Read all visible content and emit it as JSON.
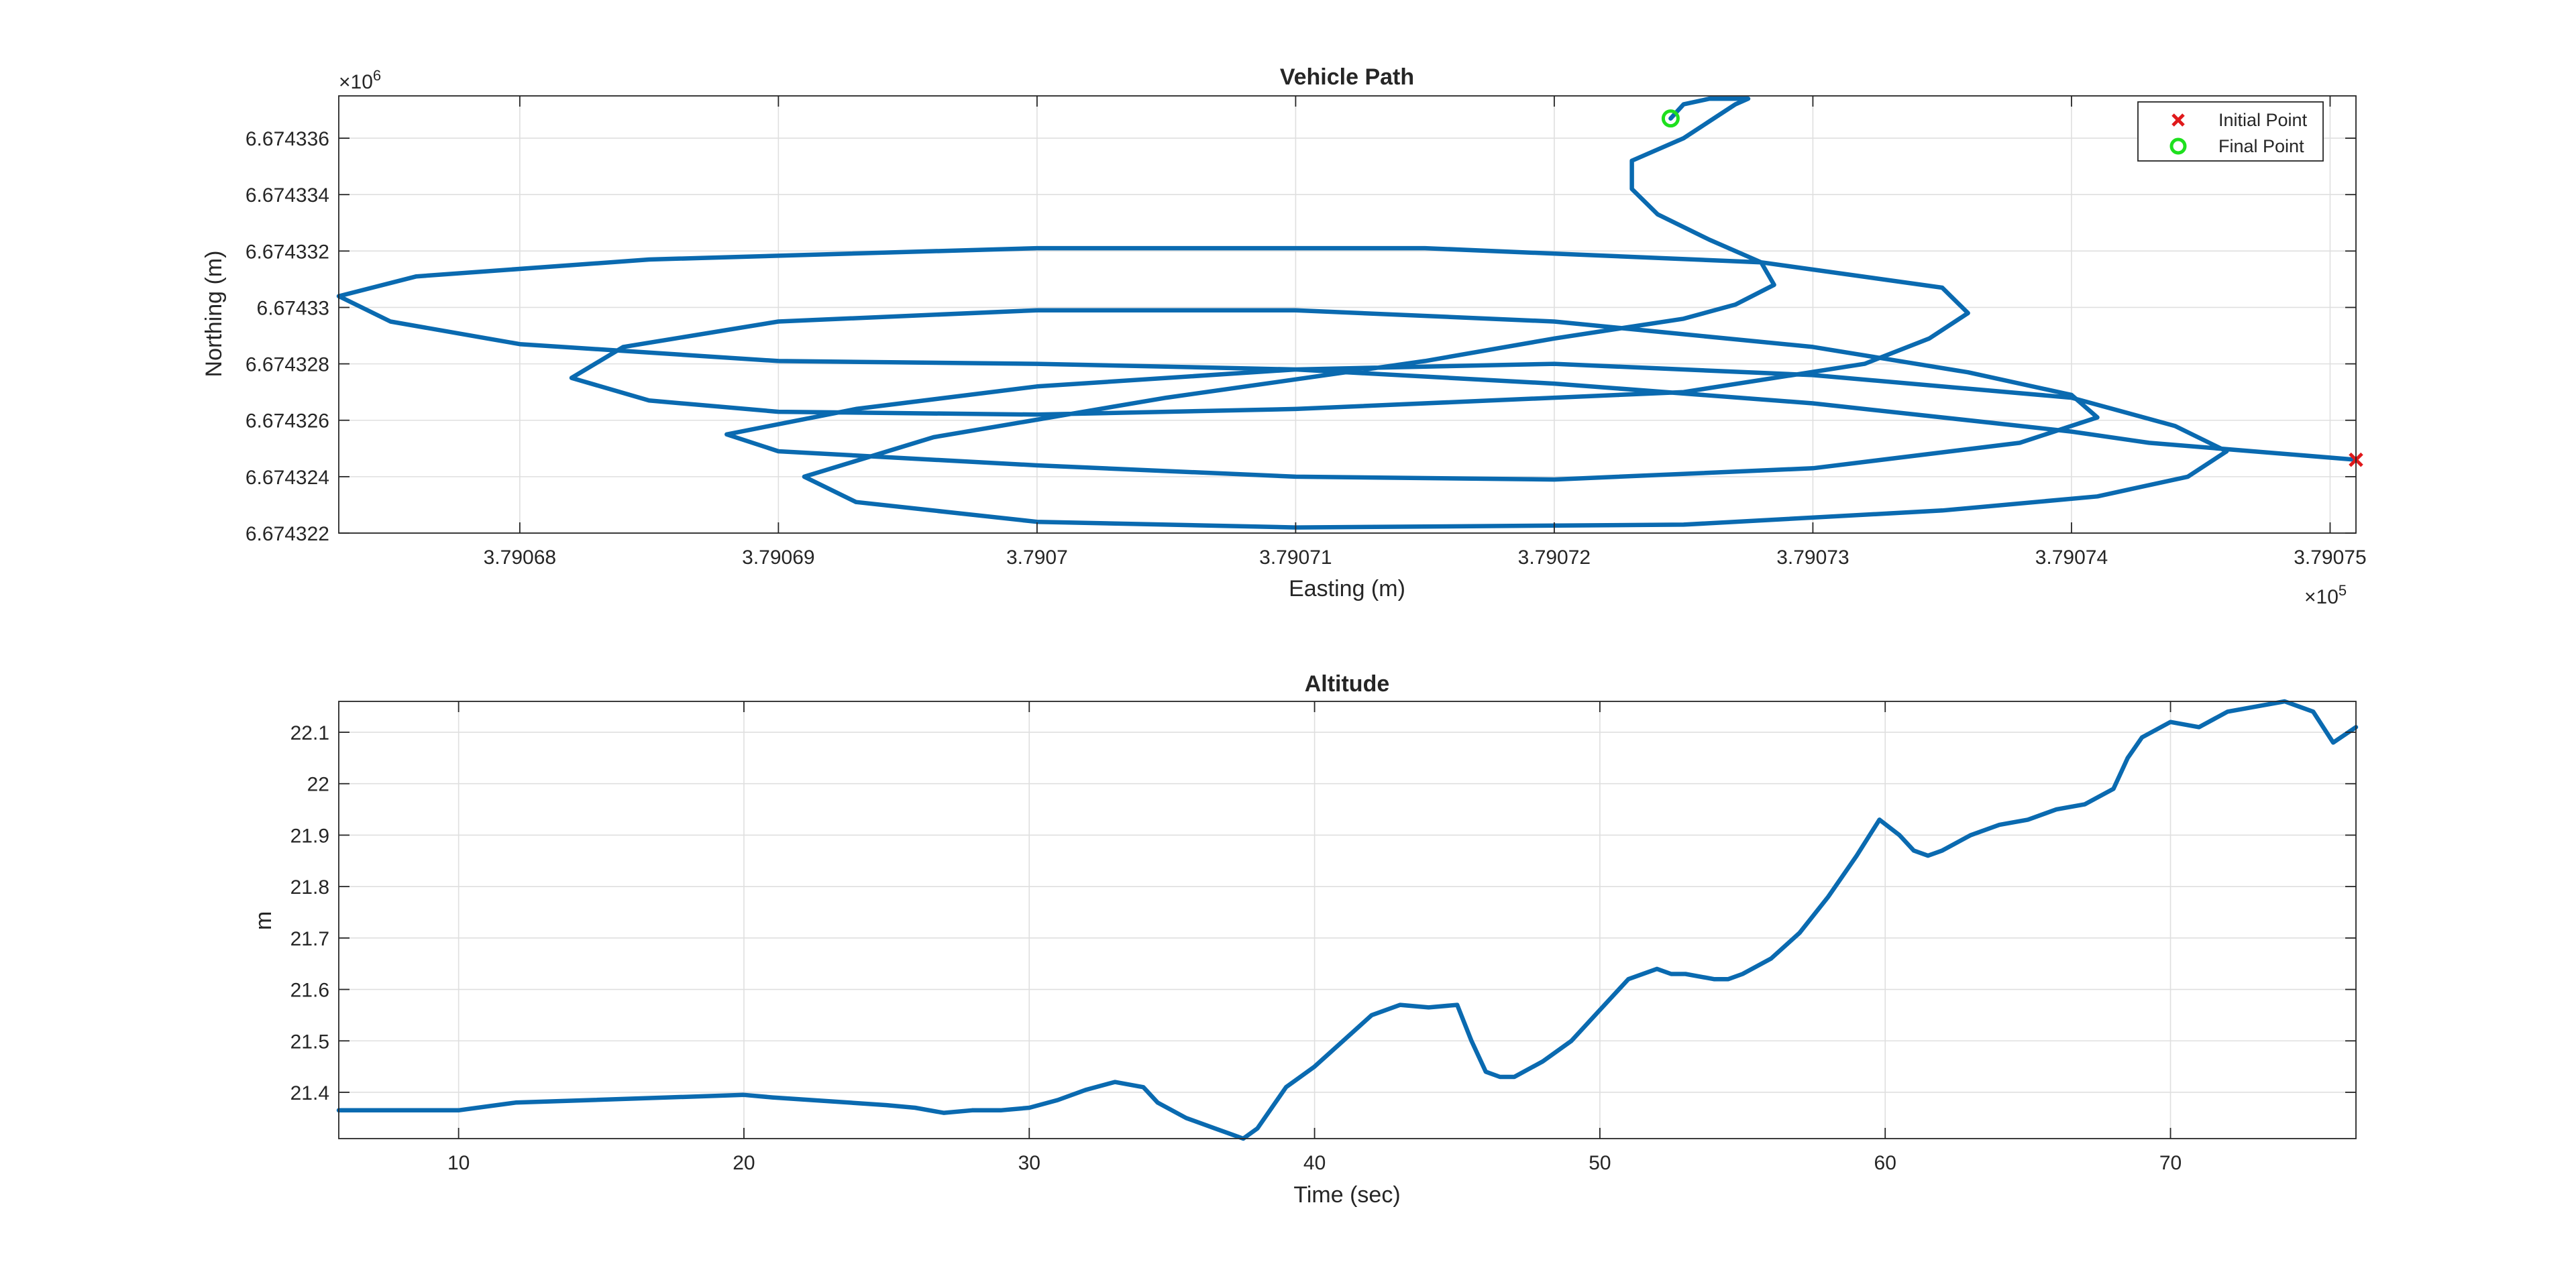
{
  "colors": {
    "series": "#0a6ab0",
    "initial_marker": "#e0191b",
    "final_marker": "#1ee01e",
    "axes": "#262626",
    "grid": "#dfdfdf"
  },
  "chart_data": [
    {
      "type": "line",
      "title": "Vehicle Path",
      "xlabel": "Easting (m)",
      "ylabel": "Northing (m)",
      "x_exponent": "×10",
      "x_exponent_power": "5",
      "y_exponent": "×10",
      "y_exponent_power": "6",
      "xlim": [
        379067.3,
        379075.1
      ],
      "ylim": [
        6674322.0,
        6674337.5
      ],
      "x_ticks": [
        379068,
        379069,
        379070,
        379071,
        379072,
        379073,
        379074,
        379075
      ],
      "x_tick_labels": [
        "3.79068",
        "3.79069",
        "3.7907",
        "3.79071",
        "3.79072",
        "3.79073",
        "3.79074",
        "3.79075"
      ],
      "y_ticks": [
        6674322,
        6674324,
        6674326,
        6674328,
        6674330,
        6674332,
        6674334,
        6674336
      ],
      "y_tick_labels": [
        "6.674322",
        "6.674324",
        "6.674326",
        "6.674328",
        "6.67433",
        "6.674332",
        "6.674334",
        "6.674336"
      ],
      "grid": true,
      "legend_position": "top-right",
      "legend": [
        {
          "label": "Initial Point",
          "marker": "x"
        },
        {
          "label": "Final Point",
          "marker": "o"
        }
      ],
      "initial_point": {
        "x": 379075.1,
        "y": 6674324.6
      },
      "final_point": {
        "x": 379072.45,
        "y": 6674336.7
      },
      "series": [
        {
          "x": [
            379075.1,
            379074.7,
            379074.3,
            379074.0,
            379073.5,
            379073.0,
            379072.0,
            379071.0,
            379070.0,
            379069.0,
            379068.0,
            379067.5,
            379067.3,
            379067.6,
            379068.5,
            379070.0,
            379071.5,
            379072.8,
            379073.5,
            379073.6,
            379073.45,
            379073.2,
            379072.5,
            379071.0,
            379070.0,
            379069.0,
            379068.5,
            379068.2,
            379068.4,
            379069.0,
            379070.0,
            379071.0,
            379072.0,
            379073.0,
            379073.6,
            379074.0,
            379074.1,
            379073.8,
            379073.0,
            379072.0,
            379071.0,
            379070.0,
            379069.0,
            379068.8,
            379069.3,
            379070.0,
            379071.0,
            379072.0,
            379073.0,
            379074.0,
            379074.4,
            379074.6,
            379074.45,
            379074.1,
            379073.5,
            379072.5,
            379071.0,
            379070.0,
            379069.3,
            379069.1,
            379069.6,
            379070.5,
            379071.5,
            379072.0,
            379072.5,
            379072.7,
            379072.85,
            379072.8,
            379072.6,
            379072.4,
            379072.3,
            379072.3,
            379072.5,
            379072.6,
            379072.7,
            379072.75,
            379072.6,
            379072.5,
            379072.45
          ],
          "y": [
            6674324.6,
            6674324.9,
            6674325.2,
            6674325.6,
            6674326.1,
            6674326.6,
            6674327.3,
            6674327.8,
            6674328.0,
            6674328.1,
            6674328.7,
            6674329.5,
            6674330.4,
            6674331.1,
            6674331.7,
            6674332.1,
            6674332.1,
            6674331.6,
            6674330.7,
            6674329.8,
            6674328.9,
            6674328.0,
            6674327.0,
            6674326.4,
            6674326.2,
            6674326.3,
            6674326.7,
            6674327.5,
            6674328.6,
            6674329.5,
            6674329.9,
            6674329.9,
            6674329.5,
            6674328.6,
            6674327.7,
            6674326.9,
            6674326.1,
            6674325.2,
            6674324.3,
            6674323.9,
            6674324.0,
            6674324.4,
            6674324.9,
            6674325.5,
            6674326.4,
            6674327.2,
            6674327.8,
            6674328.0,
            6674327.6,
            6674326.8,
            6674325.8,
            6674324.9,
            6674324.0,
            6674323.3,
            6674322.8,
            6674322.3,
            6674322.2,
            6674322.4,
            6674323.1,
            6674324.0,
            6674325.4,
            6674326.8,
            6674328.1,
            6674328.9,
            6674329.6,
            6674330.1,
            6674330.8,
            6674331.6,
            6674332.4,
            6674333.3,
            6674334.2,
            6674335.2,
            6674336.0,
            6674336.6,
            6674337.2,
            6674337.4,
            6674337.4,
            6674337.2,
            6674336.7
          ]
        }
      ]
    },
    {
      "type": "line",
      "title": "Altitude",
      "xlabel": "Time (sec)",
      "ylabel": "m",
      "xlim": [
        5.8,
        76.5
      ],
      "ylim": [
        21.31,
        22.16
      ],
      "x_ticks": [
        10,
        20,
        30,
        40,
        50,
        60,
        70
      ],
      "x_tick_labels": [
        "10",
        "20",
        "30",
        "40",
        "50",
        "60",
        "70"
      ],
      "y_ticks": [
        21.4,
        21.5,
        21.6,
        21.7,
        21.8,
        21.9,
        22.0,
        22.1
      ],
      "y_tick_labels": [
        "21.4",
        "21.5",
        "21.6",
        "21.7",
        "21.8",
        "21.9",
        "22",
        "22.1"
      ],
      "grid": true,
      "series": [
        {
          "x": [
            5.8,
            10.0,
            12.0,
            20.0,
            21.0,
            25.0,
            26.0,
            27.0,
            28.0,
            29.0,
            30.0,
            31.0,
            32.0,
            33.0,
            34.0,
            34.5,
            35.5,
            36.5,
            37.0,
            37.5,
            38.0,
            38.5,
            39.0,
            39.5,
            40.0,
            41.0,
            42.0,
            43.0,
            44.0,
            45.0,
            45.5,
            46.0,
            46.5,
            47.0,
            48.0,
            49.0,
            50.0,
            51.0,
            52.0,
            52.5,
            53.0,
            54.0,
            54.5,
            55.0,
            56.0,
            57.0,
            58.0,
            59.0,
            59.8,
            60.5,
            61.0,
            61.5,
            62.0,
            63.0,
            64.0,
            65.0,
            66.0,
            67.0,
            68.0,
            68.5,
            69.0,
            70.0,
            71.0,
            72.0,
            73.0,
            74.0,
            75.0,
            75.7,
            76.5
          ],
          "y": [
            21.365,
            21.365,
            21.38,
            21.395,
            21.39,
            21.375,
            21.37,
            21.36,
            21.365,
            21.365,
            21.37,
            21.385,
            21.405,
            21.42,
            21.41,
            21.38,
            21.35,
            21.33,
            21.32,
            21.31,
            21.33,
            21.37,
            21.41,
            21.43,
            21.45,
            21.5,
            21.55,
            21.57,
            21.565,
            21.57,
            21.5,
            21.44,
            21.43,
            21.43,
            21.46,
            21.5,
            21.56,
            21.62,
            21.64,
            21.63,
            21.63,
            21.62,
            21.62,
            21.63,
            21.66,
            21.71,
            21.78,
            21.86,
            21.93,
            21.9,
            21.87,
            21.86,
            21.87,
            21.9,
            21.92,
            21.93,
            21.95,
            21.96,
            21.99,
            22.05,
            22.09,
            22.12,
            22.11,
            22.14,
            22.15,
            22.16,
            22.14,
            22.08,
            22.11
          ]
        }
      ]
    }
  ]
}
